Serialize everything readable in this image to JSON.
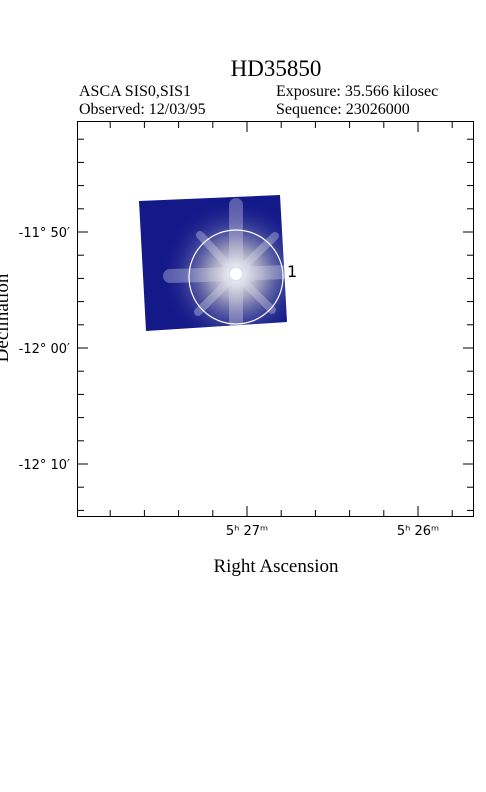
{
  "header": {
    "title": "HD35850",
    "instrument": "ASCA SIS0,SIS1",
    "exposure": "Exposure: 35.566 kilosec",
    "observed": "Observed: 12/03/95",
    "sequence": "Sequence: 23026000"
  },
  "axes": {
    "x_label": "Right Ascension",
    "y_label": "Declination",
    "x_ticks": [
      "5ʰ 27ᵐ",
      "5ʰ 26ᵐ"
    ],
    "y_ticks": [
      "-11° 50′",
      "-12° 00′",
      "-12° 10′"
    ]
  },
  "image": {
    "region_label": "1"
  }
}
